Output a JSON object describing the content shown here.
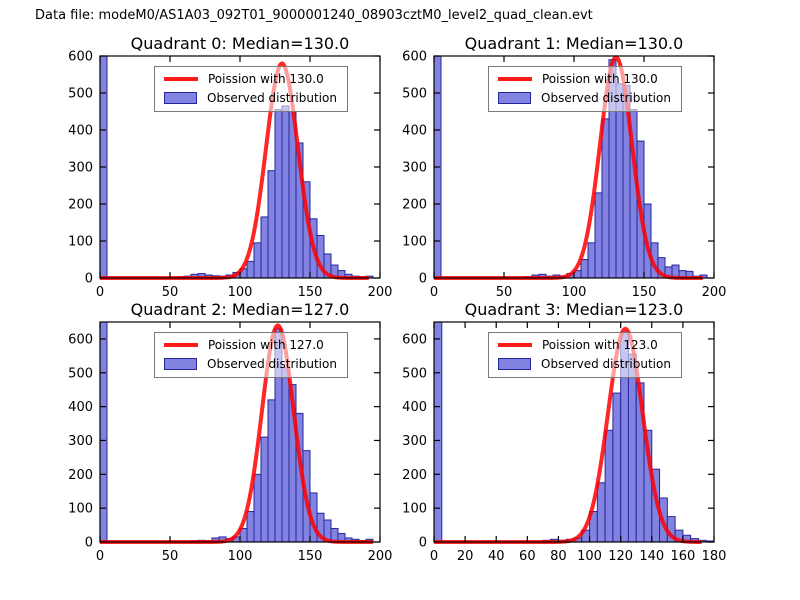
{
  "figure_title": "Data file: modeM0/AS1A03_092T01_9000001240_08903cztM0_level2_quad_clean.evt",
  "colors": {
    "hist_fill": "#8282e0",
    "hist_edge": "#26269b",
    "curve": "#ff0000",
    "axes_frame": "#000000",
    "background": "#ffffff",
    "legend_border": "#7a7a7a"
  },
  "chart_data": [
    {
      "type": "bar",
      "subtype": "histogram-with-fit-line",
      "title": "Quadrant 0: Median=130.0",
      "median": 130.0,
      "xlabel": "",
      "ylabel": "",
      "xlim": [
        0,
        200
      ],
      "ylim": [
        0,
        600
      ],
      "xticks": [
        0,
        50,
        100,
        150,
        200
      ],
      "yticks": [
        0,
        100,
        200,
        300,
        400,
        500,
        600
      ],
      "grid": false,
      "legend_loc": "upper right",
      "bin_start": 0,
      "bin_width": 5,
      "counts": [
        600,
        0,
        0,
        0,
        0,
        0,
        0,
        0,
        0,
        0,
        0,
        3,
        5,
        10,
        12,
        8,
        6,
        5,
        8,
        15,
        25,
        45,
        95,
        165,
        290,
        455,
        465,
        450,
        365,
        260,
        160,
        115,
        65,
        35,
        20,
        10,
        5,
        3,
        5,
        0
      ],
      "curve": {
        "mu": 130,
        "sigma": 11.4,
        "amplitude": 580,
        "x_start": 0,
        "x_end": 192
      },
      "legend": [
        {
          "label": "Poission with 130.0",
          "type": "line"
        },
        {
          "label": "Observed distribution",
          "type": "patch"
        }
      ]
    },
    {
      "type": "bar",
      "subtype": "histogram-with-fit-line",
      "title": "Quadrant 1: Median=130.0",
      "median": 130.0,
      "xlabel": "",
      "ylabel": "",
      "xlim": [
        0,
        200
      ],
      "ylim": [
        0,
        600
      ],
      "xticks": [
        0,
        50,
        100,
        150,
        200
      ],
      "yticks": [
        0,
        100,
        200,
        300,
        400,
        500,
        600
      ],
      "grid": false,
      "legend_loc": "upper right",
      "bin_start": 0,
      "bin_width": 5,
      "counts": [
        600,
        0,
        0,
        0,
        0,
        0,
        0,
        0,
        0,
        0,
        0,
        0,
        0,
        3,
        8,
        10,
        5,
        8,
        5,
        12,
        20,
        50,
        95,
        230,
        430,
        590,
        525,
        520,
        455,
        370,
        200,
        95,
        55,
        30,
        35,
        20,
        18,
        5,
        8,
        0
      ],
      "curve": {
        "mu": 130,
        "sigma": 11.4,
        "amplitude": 597,
        "x_start": 0,
        "x_end": 192
      },
      "legend": [
        {
          "label": "Poission with 130.0",
          "type": "line"
        },
        {
          "label": "Observed distribution",
          "type": "patch"
        }
      ]
    },
    {
      "type": "bar",
      "subtype": "histogram-with-fit-line",
      "title": "Quadrant 2: Median=127.0",
      "median": 127.0,
      "xlabel": "",
      "ylabel": "",
      "xlim": [
        0,
        200
      ],
      "ylim": [
        0,
        650
      ],
      "xticks": [
        0,
        50,
        100,
        150,
        200
      ],
      "yticks": [
        0,
        100,
        200,
        300,
        400,
        500,
        600
      ],
      "grid": false,
      "legend_loc": "upper right",
      "bin_start": 0,
      "bin_width": 5,
      "counts": [
        650,
        0,
        0,
        0,
        0,
        0,
        0,
        0,
        0,
        0,
        0,
        0,
        0,
        3,
        5,
        4,
        12,
        15,
        10,
        15,
        40,
        90,
        200,
        310,
        420,
        630,
        515,
        465,
        380,
        270,
        145,
        85,
        65,
        40,
        25,
        12,
        8,
        4,
        8,
        0
      ],
      "curve": {
        "mu": 127,
        "sigma": 11.3,
        "amplitude": 640,
        "x_start": 0,
        "x_end": 195
      },
      "legend": [
        {
          "label": "Poission with 127.0",
          "type": "line"
        },
        {
          "label": "Observed distribution",
          "type": "patch"
        }
      ]
    },
    {
      "type": "bar",
      "subtype": "histogram-with-fit-line",
      "title": "Quadrant 3: Median=123.0",
      "median": 123.0,
      "xlabel": "",
      "ylabel": "",
      "xlim": [
        0,
        180
      ],
      "ylim": [
        0,
        650
      ],
      "xticks": [
        0,
        20,
        40,
        60,
        80,
        100,
        120,
        140,
        160,
        180
      ],
      "yticks": [
        0,
        100,
        200,
        300,
        400,
        500,
        600
      ],
      "grid": false,
      "legend_loc": "upper right",
      "bin_start": 0,
      "bin_width": 5,
      "counts": [
        650,
        0,
        0,
        0,
        0,
        0,
        0,
        0,
        0,
        0,
        0,
        0,
        0,
        0,
        5,
        8,
        5,
        8,
        12,
        35,
        90,
        175,
        330,
        440,
        620,
        555,
        470,
        330,
        215,
        130,
        75,
        35,
        20,
        10,
        5,
        3
      ],
      "curve": {
        "mu": 123,
        "sigma": 11.1,
        "amplitude": 630,
        "x_start": 0,
        "x_end": 172
      },
      "legend": [
        {
          "label": "Poission with 123.0",
          "type": "line"
        },
        {
          "label": "Observed distribution",
          "type": "patch"
        }
      ]
    }
  ]
}
